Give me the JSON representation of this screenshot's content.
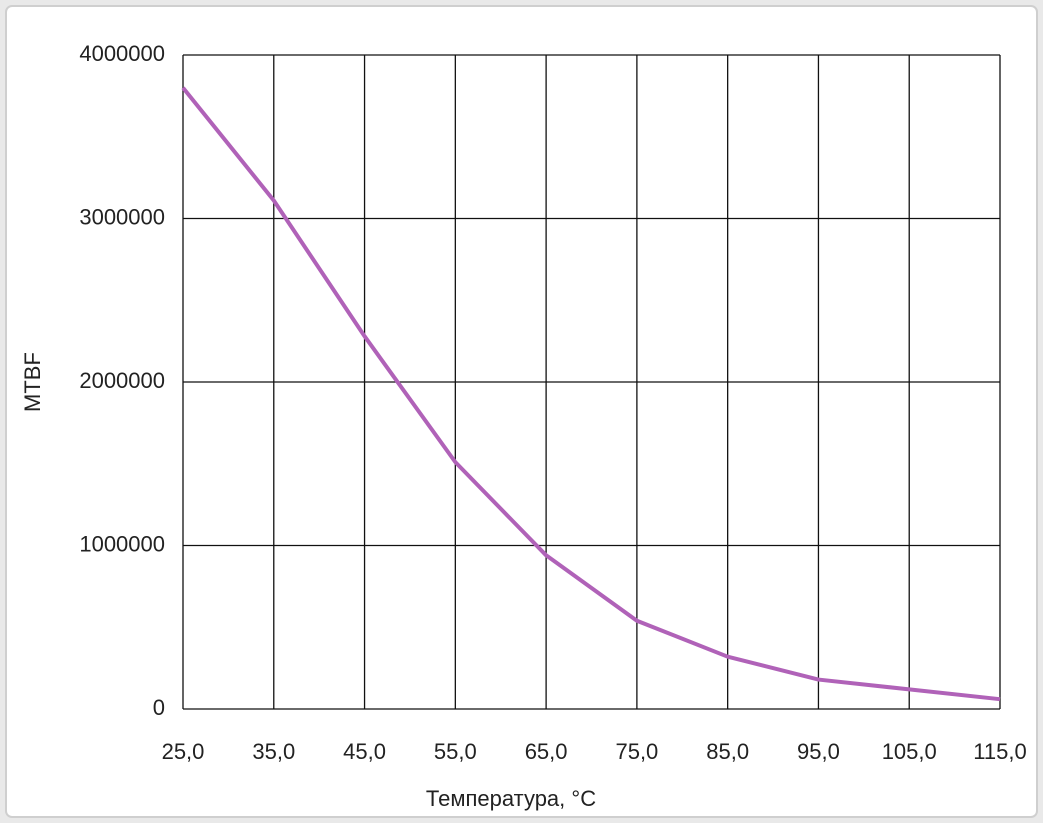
{
  "chart_data": {
    "type": "line",
    "x_label": "Температура, °C",
    "y_label": "MTBF",
    "x": [
      25,
      35,
      45,
      55,
      65,
      75,
      85,
      95,
      105,
      115
    ],
    "values": [
      3800000,
      3110000,
      2280000,
      1510000,
      940000,
      540000,
      320000,
      180000,
      120000,
      60000
    ],
    "color": "#b062b8",
    "xlim": [
      25,
      115
    ],
    "xticks": [
      {
        "value": 25,
        "label": "25,0"
      },
      {
        "value": 35,
        "label": "35,0"
      },
      {
        "value": 45,
        "label": "45,0"
      },
      {
        "value": 55,
        "label": "55,0"
      },
      {
        "value": 65,
        "label": "65,0"
      },
      {
        "value": 75,
        "label": "75,0"
      },
      {
        "value": 85,
        "label": "85,0"
      },
      {
        "value": 95,
        "label": "95,0"
      },
      {
        "value": 105,
        "label": "105,0"
      },
      {
        "value": 115,
        "label": "115,0"
      }
    ],
    "ylim": [
      0,
      4000000
    ],
    "yticks": [
      0,
      1000000,
      2000000,
      3000000,
      4000000
    ],
    "grid": true
  }
}
